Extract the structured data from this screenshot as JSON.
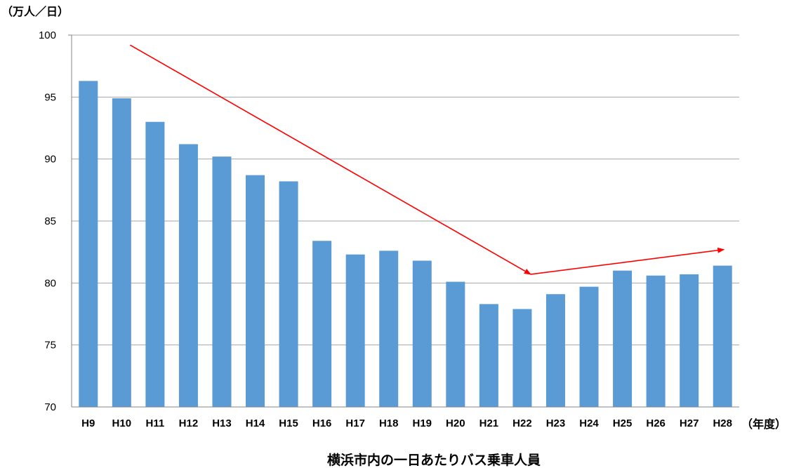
{
  "chart_data": {
    "type": "bar",
    "title": "",
    "caption": "横浜市内の一日あたりバス乗車人員",
    "ylabel": "（万人／日）",
    "xlabel": "（年度）",
    "ylim": [
      70,
      100
    ],
    "ytick_step": 5,
    "grid": true,
    "categories": [
      "H9",
      "H10",
      "H11",
      "H12",
      "H13",
      "H14",
      "H15",
      "H16",
      "H17",
      "H18",
      "H19",
      "H20",
      "H21",
      "H22",
      "H23",
      "H24",
      "H25",
      "H26",
      "H27",
      "H28"
    ],
    "values": [
      96.3,
      94.9,
      93.0,
      91.2,
      90.2,
      88.7,
      88.2,
      83.4,
      82.3,
      82.6,
      81.8,
      80.1,
      78.3,
      77.9,
      79.1,
      79.7,
      81.0,
      80.6,
      80.7,
      81.4
    ],
    "annotations": [
      {
        "type": "trend-arrow",
        "from": {
          "x": "H10",
          "y": 99.2
        },
        "to": {
          "x": "H22",
          "y": 80.7
        }
      },
      {
        "type": "trend-arrow",
        "from": {
          "x": "H22",
          "y": 80.7
        },
        "to": {
          "x": "H28",
          "y": 82.7
        }
      }
    ],
    "colors": {
      "bar": "#5b9bd5",
      "arrow": "#ff0000",
      "grid": "#a6a6a6",
      "axis": "#868686"
    }
  }
}
